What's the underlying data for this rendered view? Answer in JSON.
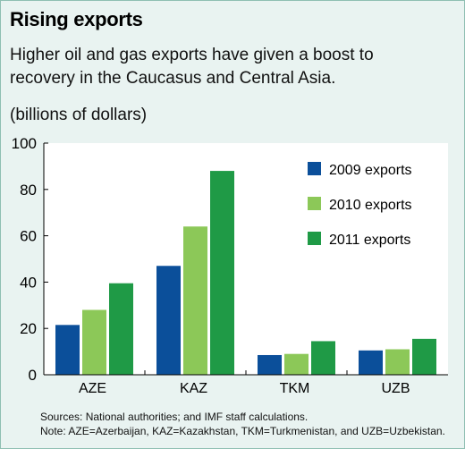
{
  "header": {
    "title": "Rising exports",
    "subtitle": "Higher oil and gas exports have given a boost to recovery in the Caucasus and Central Asia.",
    "unit": "(billions of dollars)"
  },
  "footer": {
    "sources": "Sources: National authorities; and IMF staff calculations.",
    "note": "Note: AZE=Azerbaijan, KAZ=Kazakhstan, TKM=Turkmenistan, and UZB=Uzbekistan."
  },
  "colors": {
    "2009": "#0b4f9a",
    "2010": "#8cc858",
    "2011": "#1f9a46",
    "background": "#e9f3f1",
    "plot": "#ffffff"
  },
  "chart_data": {
    "type": "bar",
    "categories": [
      "AZE",
      "KAZ",
      "TKM",
      "UZB"
    ],
    "series": [
      {
        "name": "2009 exports",
        "values": [
          21.5,
          47,
          8.5,
          10.5
        ]
      },
      {
        "name": "2010 exports",
        "values": [
          28,
          64,
          9,
          11
        ]
      },
      {
        "name": "2011 exports",
        "values": [
          39.5,
          88,
          14.5,
          15.5
        ]
      }
    ],
    "title": "Rising exports",
    "xlabel": "",
    "ylabel": "(billions of dollars)",
    "ylim": [
      0,
      100
    ],
    "yticks": [
      0,
      20,
      40,
      60,
      80,
      100
    ],
    "grid": false,
    "legend": "top-right"
  }
}
